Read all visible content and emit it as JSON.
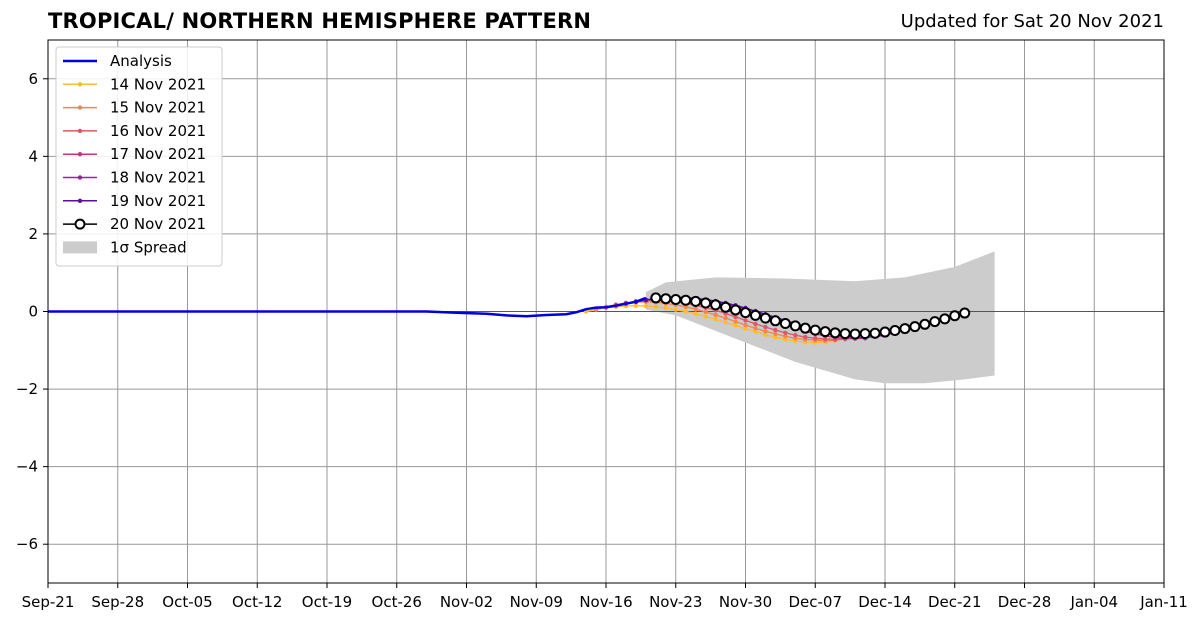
{
  "chart_data": {
    "type": "line",
    "title": "TROPICAL/ NORTHERN HEMISPHERE PATTERN",
    "subtitle": "Updated for Sat 20 Nov 2021",
    "xlabel": "",
    "ylabel": "",
    "x_axis": {
      "start": "2021-09-21",
      "end": "2022-01-11",
      "ticks": [
        "Sep-21",
        "Sep-28",
        "Oct-05",
        "Oct-12",
        "Oct-19",
        "Oct-26",
        "Nov-02",
        "Nov-09",
        "Nov-16",
        "Nov-23",
        "Nov-30",
        "Dec-07",
        "Dec-14",
        "Dec-21",
        "Dec-28",
        "Jan-04",
        "Jan-11"
      ]
    },
    "ylim": [
      -7,
      7
    ],
    "yticks": [
      -6,
      -4,
      -2,
      0,
      2,
      4,
      6
    ],
    "grid": true,
    "legend": {
      "placement": "top-left",
      "entries": [
        "Analysis",
        "14 Nov 2021",
        "15 Nov 2021",
        "16 Nov 2021",
        "17 Nov 2021",
        "18 Nov 2021",
        "19 Nov 2021",
        "20 Nov 2021",
        "1σ Spread"
      ]
    },
    "colors": {
      "analysis": "#0000dd",
      "spread": "#cccccc",
      "grid": "#999999",
      "forecast_20": "#000000"
    },
    "analysis": [
      [
        "2021-09-21",
        0.0
      ],
      [
        "2021-10-29",
        0.0
      ],
      [
        "2021-11-01",
        -0.03
      ],
      [
        "2021-11-04",
        -0.06
      ],
      [
        "2021-11-06",
        -0.1
      ],
      [
        "2021-11-08",
        -0.12
      ],
      [
        "2021-11-10",
        -0.09
      ],
      [
        "2021-11-12",
        -0.07
      ],
      [
        "2021-11-13",
        -0.02
      ],
      [
        "2021-11-14",
        0.06
      ],
      [
        "2021-11-15",
        0.1
      ],
      [
        "2021-11-16",
        0.11
      ],
      [
        "2021-11-17",
        0.15
      ],
      [
        "2021-11-18",
        0.2
      ],
      [
        "2021-11-19",
        0.25
      ],
      [
        "2021-11-20",
        0.35
      ]
    ],
    "spread": {
      "upper": [
        [
          "2021-11-20",
          0.5
        ],
        [
          "2021-11-22",
          0.75
        ],
        [
          "2021-11-27",
          0.88
        ],
        [
          "2021-12-04",
          0.85
        ],
        [
          "2021-12-11",
          0.78
        ],
        [
          "2021-12-16",
          0.88
        ],
        [
          "2021-12-21",
          1.15
        ],
        [
          "2021-12-25",
          1.55
        ]
      ],
      "lower": [
        [
          "2021-11-20",
          0.05
        ],
        [
          "2021-11-23",
          -0.1
        ],
        [
          "2021-11-29",
          -0.7
        ],
        [
          "2021-12-05",
          -1.3
        ],
        [
          "2021-12-11",
          -1.75
        ],
        [
          "2021-12-14",
          -1.85
        ],
        [
          "2021-12-18",
          -1.85
        ],
        [
          "2021-12-22",
          -1.75
        ],
        [
          "2021-12-25",
          -1.65
        ]
      ]
    },
    "series": [
      {
        "name": "14 Nov 2021",
        "color": "#ffbb33",
        "start": "2021-11-14",
        "values": [
          0.0,
          0.05,
          0.1,
          0.12,
          0.14,
          0.15,
          0.14,
          0.12,
          0.09,
          0.05,
          0.0,
          -0.06,
          -0.13,
          -0.2,
          -0.28,
          -0.36,
          -0.44,
          -0.52,
          -0.6,
          -0.67,
          -0.72,
          -0.76,
          -0.79,
          -0.8,
          -0.79,
          -0.75
        ]
      },
      {
        "name": "15 Nov 2021",
        "color": "#f0884a",
        "start": "2021-11-15",
        "values": [
          0.05,
          0.12,
          0.18,
          0.22,
          0.24,
          0.25,
          0.24,
          0.21,
          0.17,
          0.12,
          0.06,
          -0.01,
          -0.09,
          -0.17,
          -0.26,
          -0.35,
          -0.43,
          -0.51,
          -0.58,
          -0.64,
          -0.69,
          -0.72,
          -0.74,
          -0.75,
          -0.74,
          -0.71
        ]
      },
      {
        "name": "16 Nov 2021",
        "color": "#e0556a",
        "start": "2021-11-16",
        "values": [
          0.1,
          0.17,
          0.22,
          0.26,
          0.28,
          0.29,
          0.28,
          0.25,
          0.21,
          0.16,
          0.1,
          0.03,
          -0.05,
          -0.14,
          -0.23,
          -0.32,
          -0.4,
          -0.48,
          -0.55,
          -0.61,
          -0.66,
          -0.69,
          -0.71,
          -0.72,
          -0.71,
          -0.69
        ]
      },
      {
        "name": "17 Nov 2021",
        "color": "#c13584",
        "start": "2021-11-17",
        "values": [
          0.15,
          0.21,
          0.26,
          0.3,
          0.33,
          0.35,
          0.36,
          0.35,
          0.33,
          0.3,
          0.26,
          0.2,
          0.13,
          0.05,
          -0.04,
          -0.14,
          -0.24,
          -0.34,
          -0.43,
          -0.51,
          -0.58,
          -0.63,
          -0.67,
          -0.69,
          -0.7,
          -0.69
        ]
      },
      {
        "name": "18 Nov 2021",
        "color": "#9b1fa8",
        "start": "2021-11-18",
        "values": [
          0.2,
          0.25,
          0.29,
          0.32,
          0.34,
          0.35,
          0.35,
          0.33,
          0.3,
          0.26,
          0.21,
          0.15,
          0.08,
          0.0,
          -0.09,
          -0.18,
          -0.27,
          -0.36,
          -0.44,
          -0.51,
          -0.57,
          -0.62,
          -0.65,
          -0.67,
          -0.67,
          -0.65,
          -0.61,
          -0.55,
          -0.45
        ]
      },
      {
        "name": "19 Nov 2021",
        "color": "#5a0f96",
        "start": "2021-11-19",
        "values": [
          0.25,
          0.3,
          0.34,
          0.36,
          0.37,
          0.36,
          0.34,
          0.31,
          0.27,
          0.22,
          0.16,
          0.09,
          0.01,
          -0.07,
          -0.15,
          -0.23,
          -0.31,
          -0.38,
          -0.44,
          -0.49,
          -0.53,
          -0.56,
          -0.58,
          -0.58,
          -0.57,
          -0.54,
          -0.5,
          -0.45,
          -0.38,
          -0.31
        ]
      },
      {
        "name": "20 Nov 2021",
        "color": "#000000",
        "start": "2021-11-21",
        "values": [
          0.35,
          0.33,
          0.31,
          0.29,
          0.26,
          0.22,
          0.17,
          0.11,
          0.04,
          -0.03,
          -0.1,
          -0.17,
          -0.24,
          -0.31,
          -0.37,
          -0.43,
          -0.48,
          -0.52,
          -0.55,
          -0.57,
          -0.58,
          -0.57,
          -0.56,
          -0.53,
          -0.49,
          -0.44,
          -0.39,
          -0.33,
          -0.26,
          -0.19,
          -0.11,
          -0.04
        ]
      }
    ]
  }
}
